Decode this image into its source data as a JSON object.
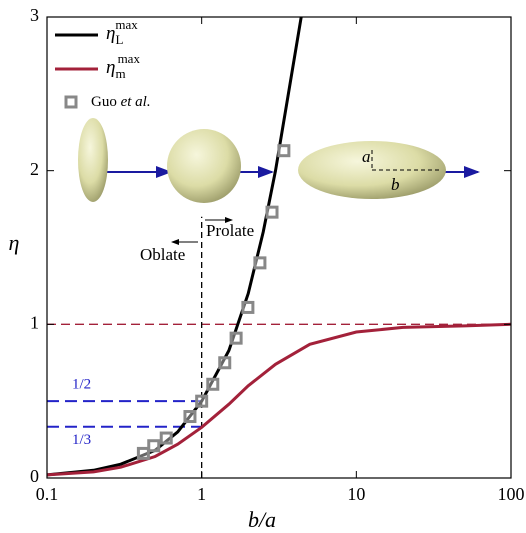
{
  "chart_data": {
    "type": "line",
    "x_label": "b/a",
    "y_label": "η",
    "xlim": [
      0.1,
      100
    ],
    "ylim": [
      0,
      3
    ],
    "xticks": [
      0.1,
      1,
      10,
      100
    ],
    "yticks": [
      0,
      1,
      2,
      3
    ],
    "xscale": "log",
    "series": [
      {
        "name": "η",
        "name_sub": "L",
        "name_sup": "max",
        "color": "#000000",
        "type": "line",
        "x": [
          0.1,
          0.2,
          0.3,
          0.5,
          0.7,
          1,
          1.5,
          2,
          2.5,
          3,
          3.5,
          4,
          4.4
        ],
        "values": [
          0.02,
          0.05,
          0.09,
          0.18,
          0.3,
          0.5,
          0.83,
          1.2,
          1.6,
          2.0,
          2.4,
          2.75,
          3.0
        ]
      },
      {
        "name": "η",
        "name_sub": "m",
        "name_sup": "max",
        "color": "#a3213a",
        "type": "line",
        "x": [
          0.1,
          0.2,
          0.3,
          0.5,
          0.7,
          1,
          1.5,
          2,
          3,
          5,
          10,
          20,
          50,
          100
        ],
        "values": [
          0.02,
          0.04,
          0.07,
          0.14,
          0.22,
          0.33,
          0.48,
          0.6,
          0.74,
          0.87,
          0.95,
          0.98,
          0.99,
          1.0
        ]
      },
      {
        "name": "Guo",
        "name_italic": "et al.",
        "color": "#888888",
        "type": "scatter",
        "x": [
          0.42,
          0.49,
          0.59,
          0.84,
          1.0,
          1.18,
          1.41,
          1.67,
          1.99,
          2.38,
          2.85,
          3.4
        ],
        "values": [
          0.16,
          0.21,
          0.26,
          0.4,
          0.5,
          0.61,
          0.75,
          0.91,
          1.11,
          1.4,
          1.73,
          2.13
        ]
      }
    ],
    "reference_lines": [
      {
        "y": 1,
        "color": "#a3213a"
      },
      {
        "y": 0.5,
        "x_end": 1,
        "color": "#2323c8",
        "label": "1/2"
      },
      {
        "y": 0.3333,
        "x_end": 1,
        "color": "#2323c8",
        "label": "1/3"
      },
      {
        "x": 1,
        "y_end": 1.7,
        "color": "#000000"
      }
    ],
    "annotations": {
      "prolate": "Prolate",
      "oblate": "Oblate",
      "a": "a",
      "b": "b"
    }
  }
}
